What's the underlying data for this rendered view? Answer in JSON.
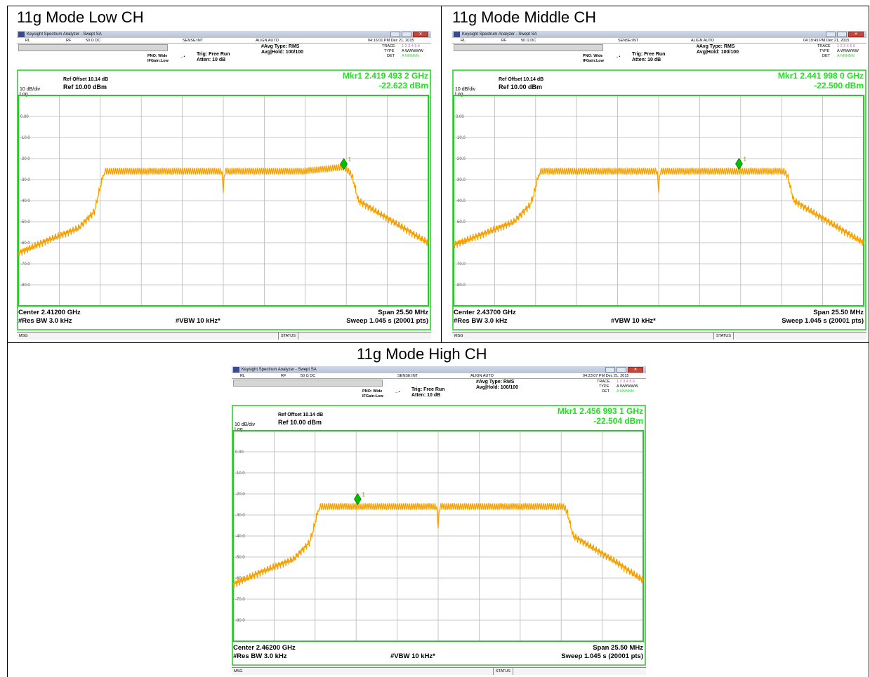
{
  "page": {
    "titles": [
      "11g Mode Low CH",
      "11g Mode Middle CH",
      "11g Mode High CH"
    ]
  },
  "colors": {
    "trace": "#f5a000",
    "marker": "#00c000",
    "green_text": "#1ce51c",
    "frame": "#22cc22",
    "grid": "#b8b8b8"
  },
  "panels": [
    {
      "window_title": "Keysight Spectrum Analyzer - Swept SA",
      "status": {
        "rl": "RL",
        "rf": "RF",
        "imp": "50 Ω  DC",
        "sense": "SENSE:INT",
        "align": "ALIGN AUTO",
        "time": "04:16:01 PM Dec 21, 2015"
      },
      "pno": "PNO: Wide",
      "ifgain": "IFGain:Low",
      "trig": "Trig: Free Run",
      "atten": "Atten: 10 dB",
      "avg_type": "#Avg Type: RMS",
      "avg_hold": "Avg|Hold: 100/100",
      "trace_lbl": "TRACE",
      "trace_nums": "1 2 3 4 5 6",
      "type_lbl": "TYPE",
      "type_val": "A WWWWW",
      "det_lbl": "DET",
      "det_val": "A NNNNN",
      "ref_offset": "Ref Offset 10.14 dB",
      "ref_level": "Ref 10.00 dBm",
      "scale": "10 dB/div",
      "log": "Log",
      "marker_freq": "Mkr1 2.419 493 2 GHz",
      "marker_amp": "-22.623 dBm",
      "marker_id": "1",
      "center": "Center 2.41200 GHz",
      "span": "Span 25.50 MHz",
      "rbw": "#Res BW 3.0 kHz",
      "vbw": "#VBW 10 kHz*",
      "sweep": "Sweep  1.045 s (20001 pts)",
      "msg": "MSG",
      "status_lbl": "STATUS"
    },
    {
      "window_title": "Keysight Spectrum Analyzer - Swept SA",
      "status": {
        "rl": "RL",
        "rf": "RF",
        "imp": "50 Ω  DC",
        "sense": "SENSE:INT",
        "align": "ALIGN AUTO",
        "time": "04:19:49 PM Dec 21, 2015"
      },
      "pno": "PNO: Wide",
      "ifgain": "IFGain:Low",
      "trig": "Trig: Free Run",
      "atten": "Atten: 10 dB",
      "avg_type": "#Avg Type: RMS",
      "avg_hold": "Avg|Hold: 100/100",
      "trace_lbl": "TRACE",
      "trace_nums": "1 2 3 4 5 6",
      "type_lbl": "TYPE",
      "type_val": "A WWWWW",
      "det_lbl": "DET",
      "det_val": "A NNNNN",
      "ref_offset": "Ref Offset 10.14 dB",
      "ref_level": "Ref 10.00 dBm",
      "scale": "10 dB/div",
      "log": "Log",
      "marker_freq": "Mkr1 2.441 998 0 GHz",
      "marker_amp": "-22.500 dBm",
      "marker_id": "1",
      "center": "Center 2.43700 GHz",
      "span": "Span 25.50 MHz",
      "rbw": "#Res BW 3.0 kHz",
      "vbw": "#VBW 10 kHz*",
      "sweep": "Sweep  1.045 s (20001 pts)",
      "msg": "MSG",
      "status_lbl": "STATUS"
    },
    {
      "window_title": "Keysight Spectrum Analyzer - Swept SA",
      "status": {
        "rl": "RL",
        "rf": "RF",
        "imp": "50 Ω  DC",
        "sense": "SENSE:INT",
        "align": "ALIGN AUTO",
        "time": "04:23:07 PM Dec 21, 2015"
      },
      "pno": "PNO: Wide",
      "ifgain": "IFGain:Low",
      "trig": "Trig: Free Run",
      "atten": "Atten: 10 dB",
      "avg_type": "#Avg Type: RMS",
      "avg_hold": "Avg|Hold: 100/100",
      "trace_lbl": "TRACE",
      "trace_nums": "1 2 3 4 5 6",
      "type_lbl": "TYPE",
      "type_val": "A WWWWW",
      "det_lbl": "DET",
      "det_val": "A NNNNN",
      "ref_offset": "Ref Offset 10.14 dB",
      "ref_level": "Ref 10.00 dBm",
      "scale": "10 dB/div",
      "log": "Log",
      "marker_freq": "Mkr1 2.456 993 1 GHz",
      "marker_amp": "-22.504 dBm",
      "marker_id": "1",
      "center": "Center 2.46200 GHz",
      "span": "Span 25.50 MHz",
      "rbw": "#Res BW 3.0 kHz",
      "vbw": "#VBW 10 kHz*",
      "sweep": "Sweep  1.045 s (20001 pts)",
      "msg": "MSG",
      "status_lbl": "STATUS"
    }
  ],
  "chart_data": [
    {
      "type": "line",
      "title": "11g Mode Low CH",
      "xlabel": "Center 2.41200 GHz",
      "ylabel": "Ref 10.00 dBm",
      "x_range_ghz": [
        2.39925,
        2.42475
      ],
      "ylim": [
        -90,
        10
      ],
      "y_ticks": [
        "0.00",
        "-10.0",
        "-20.0",
        "-30.0",
        "-40.0",
        "-50.0",
        "-60.0",
        "-70.0",
        "-80.0"
      ],
      "grid": true,
      "series": [
        {
          "x": [
            2.39925,
            2.401,
            2.403,
            2.404,
            2.4042,
            2.4046,
            2.41,
            2.4119,
            2.412,
            2.4121,
            2.417,
            2.4195,
            2.4198,
            2.42,
            2.4204,
            2.423,
            2.42475
          ],
          "values": [
            -65,
            -59,
            -53,
            -45,
            -38,
            -26,
            -26,
            -26,
            -35,
            -26,
            -26,
            -24,
            -26,
            -28,
            -40,
            -52,
            -60
          ]
        }
      ],
      "marker": {
        "x": 2.4194932,
        "y": -22.623
      }
    },
    {
      "type": "line",
      "title": "11g Mode Middle CH",
      "xlabel": "Center 2.43700 GHz",
      "ylabel": "Ref 10.00 dBm",
      "x_range_ghz": [
        2.42425,
        2.44975
      ],
      "ylim": [
        -90,
        10
      ],
      "y_ticks": [
        "0.00",
        "-10.0",
        "-20.0",
        "-30.0",
        "-40.0",
        "-50.0",
        "-60.0",
        "-70.0",
        "-80.0"
      ],
      "grid": true,
      "series": [
        {
          "x": [
            2.42425,
            2.426,
            2.428,
            2.429,
            2.4292,
            2.4296,
            2.435,
            2.4369,
            2.437,
            2.4371,
            2.442,
            2.4445,
            2.4448,
            2.445,
            2.4454,
            2.448,
            2.44975
          ],
          "values": [
            -61,
            -56,
            -50,
            -42,
            -38,
            -26,
            -26,
            -26,
            -35,
            -26,
            -26,
            -26,
            -26,
            -28,
            -40,
            -52,
            -60
          ]
        }
      ],
      "marker": {
        "x": 2.441998,
        "y": -22.5
      }
    },
    {
      "type": "line",
      "title": "11g Mode High CH",
      "xlabel": "Center 2.46200 GHz",
      "ylabel": "Ref 10.00 dBm",
      "x_range_ghz": [
        2.44925,
        2.47475
      ],
      "ylim": [
        -90,
        10
      ],
      "y_ticks": [
        "0.00",
        "-10.0",
        "-20.0",
        "-30.0",
        "-40.0",
        "-50.0",
        "-60.0",
        "-70.0",
        "-80.0"
      ],
      "grid": true,
      "series": [
        {
          "x": [
            2.44925,
            2.451,
            2.453,
            2.454,
            2.4542,
            2.4546,
            2.46,
            2.4619,
            2.462,
            2.4621,
            2.467,
            2.4695,
            2.4698,
            2.47,
            2.4704,
            2.473,
            2.47475
          ],
          "values": [
            -63,
            -57,
            -51,
            -43,
            -38,
            -26,
            -26,
            -26,
            -35,
            -26,
            -26,
            -26,
            -26,
            -28,
            -40,
            -52,
            -61
          ]
        }
      ],
      "marker": {
        "x": 2.4569931,
        "y": -22.504
      }
    }
  ]
}
